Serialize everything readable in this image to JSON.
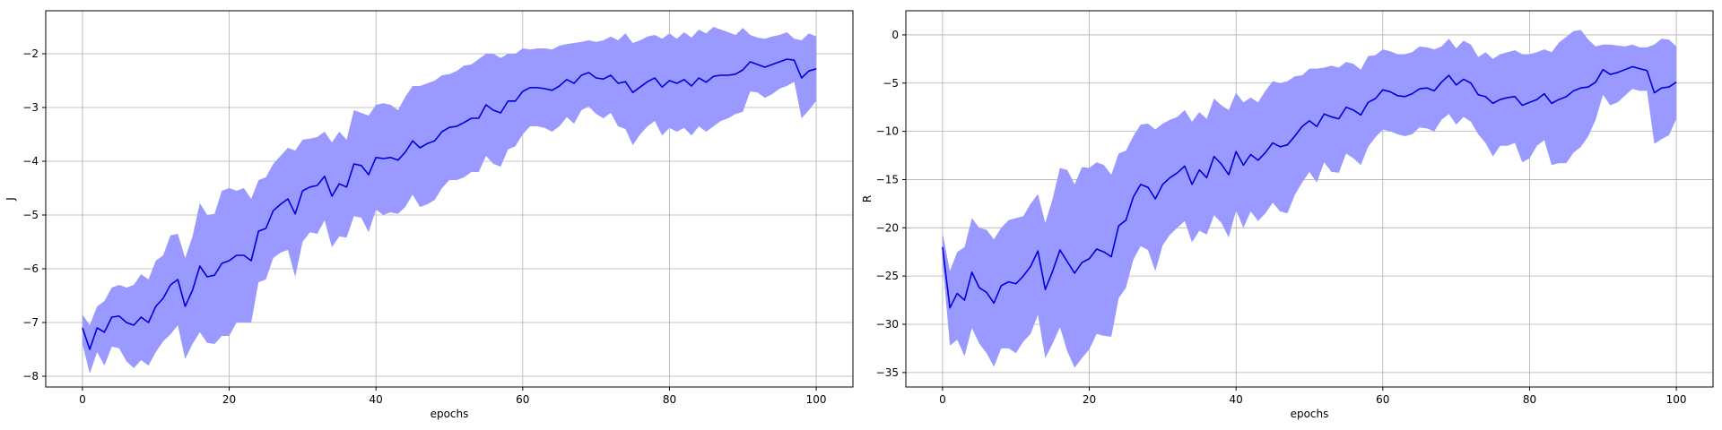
{
  "chart_data": [
    {
      "type": "line",
      "xlabel": "epochs",
      "ylabel": "J",
      "xlim": [
        -5,
        105
      ],
      "ylim": [
        -8.2,
        -1.2
      ],
      "xticks": [
        0,
        20,
        40,
        60,
        80,
        100
      ],
      "yticks": [
        -8,
        -7,
        -6,
        -5,
        -4,
        -3,
        -2
      ],
      "grid": true,
      "line_color": "#0000dd",
      "band_color": "#9999ff",
      "x": [
        0,
        1,
        2,
        3,
        4,
        5,
        6,
        7,
        8,
        9,
        10,
        11,
        12,
        13,
        14,
        15,
        16,
        17,
        18,
        19,
        20,
        21,
        22,
        23,
        24,
        25,
        26,
        27,
        28,
        29,
        30,
        31,
        32,
        33,
        34,
        35,
        36,
        37,
        38,
        39,
        40,
        41,
        42,
        43,
        44,
        45,
        46,
        47,
        48,
        49,
        50,
        51,
        52,
        53,
        54,
        55,
        56,
        57,
        58,
        59,
        60,
        61,
        62,
        63,
        64,
        65,
        66,
        67,
        68,
        69,
        70,
        71,
        72,
        73,
        74,
        75,
        76,
        77,
        78,
        79,
        80,
        81,
        82,
        83,
        84,
        85,
        86,
        87,
        88,
        89,
        90,
        91,
        92,
        93,
        94,
        95,
        96,
        97,
        98,
        99,
        100
      ],
      "series": [
        {
          "mean": [
            -7.1,
            -7.5,
            -7.1,
            -7.18,
            -6.9,
            -6.88,
            -7.0,
            -7.05,
            -6.9,
            -7.0,
            -6.7,
            -6.55,
            -6.3,
            -6.2,
            -6.7,
            -6.4,
            -5.95,
            -6.15,
            -6.12,
            -5.9,
            -5.85,
            -5.75,
            -5.75,
            -5.85,
            -5.3,
            -5.25,
            -4.92,
            -4.8,
            -4.7,
            -4.98,
            -4.55,
            -4.48,
            -4.45,
            -4.28,
            -4.65,
            -4.42,
            -4.48,
            -4.05,
            -4.08,
            -4.25,
            -3.93,
            -3.95,
            -3.93,
            -3.98,
            -3.83,
            -3.62,
            -3.75,
            -3.67,
            -3.62,
            -3.45,
            -3.37,
            -3.35,
            -3.28,
            -3.2,
            -3.2,
            -2.95,
            -3.05,
            -3.1,
            -2.88,
            -2.88,
            -2.7,
            -2.63,
            -2.63,
            -2.65,
            -2.68,
            -2.6,
            -2.48,
            -2.55,
            -2.4,
            -2.35,
            -2.45,
            -2.47,
            -2.4,
            -2.55,
            -2.52,
            -2.72,
            -2.62,
            -2.52,
            -2.45,
            -2.62,
            -2.5,
            -2.55,
            -2.48,
            -2.6,
            -2.45,
            -2.53,
            -2.42,
            -2.4,
            -2.4,
            -2.38,
            -2.3,
            -2.15,
            -2.2,
            -2.25,
            -2.2,
            -2.15,
            -2.1,
            -2.12,
            -2.45,
            -2.32,
            -2.28
          ],
          "upper": [
            -6.85,
            -7.05,
            -6.7,
            -6.6,
            -6.35,
            -6.3,
            -6.35,
            -6.3,
            -6.1,
            -6.2,
            -5.85,
            -5.75,
            -5.38,
            -5.35,
            -5.8,
            -5.4,
            -4.78,
            -5.0,
            -4.98,
            -4.55,
            -4.5,
            -4.55,
            -4.5,
            -4.7,
            -4.35,
            -4.3,
            -4.05,
            -3.9,
            -3.75,
            -3.8,
            -3.6,
            -3.58,
            -3.55,
            -3.45,
            -3.65,
            -3.45,
            -3.6,
            -3.05,
            -3.1,
            -3.15,
            -2.95,
            -2.92,
            -2.95,
            -3.05,
            -2.8,
            -2.6,
            -2.6,
            -2.55,
            -2.5,
            -2.4,
            -2.38,
            -2.32,
            -2.22,
            -2.2,
            -2.1,
            -2.0,
            -2.0,
            -2.08,
            -2.0,
            -2.0,
            -1.9,
            -1.92,
            -1.9,
            -1.9,
            -1.92,
            -1.85,
            -1.82,
            -1.8,
            -1.78,
            -1.75,
            -1.78,
            -1.75,
            -1.68,
            -1.75,
            -1.62,
            -1.8,
            -1.75,
            -1.68,
            -1.65,
            -1.72,
            -1.62,
            -1.72,
            -1.6,
            -1.7,
            -1.55,
            -1.62,
            -1.5,
            -1.55,
            -1.6,
            -1.65,
            -1.52,
            -1.65,
            -1.7,
            -1.72,
            -1.68,
            -1.65,
            -1.6,
            -1.72,
            -1.75,
            -1.62,
            -1.68
          ],
          "lower": [
            -7.4,
            -7.95,
            -7.55,
            -7.8,
            -7.45,
            -7.48,
            -7.72,
            -7.85,
            -7.7,
            -7.8,
            -7.55,
            -7.35,
            -7.22,
            -7.05,
            -7.68,
            -7.4,
            -7.18,
            -7.38,
            -7.4,
            -7.25,
            -7.25,
            -7.0,
            -7.0,
            -7.0,
            -6.25,
            -6.2,
            -5.8,
            -5.7,
            -5.65,
            -6.15,
            -5.5,
            -5.32,
            -5.35,
            -5.1,
            -5.6,
            -5.4,
            -5.42,
            -5.02,
            -5.05,
            -5.32,
            -4.9,
            -5.0,
            -4.95,
            -4.98,
            -4.85,
            -4.62,
            -4.85,
            -4.8,
            -4.72,
            -4.5,
            -4.35,
            -4.35,
            -4.3,
            -4.2,
            -4.2,
            -3.9,
            -4.05,
            -4.1,
            -3.78,
            -3.72,
            -3.5,
            -3.35,
            -3.35,
            -3.38,
            -3.45,
            -3.35,
            -3.18,
            -3.3,
            -3.05,
            -2.98,
            -3.12,
            -3.2,
            -3.1,
            -3.35,
            -3.4,
            -3.7,
            -3.5,
            -3.35,
            -3.25,
            -3.52,
            -3.38,
            -3.45,
            -3.38,
            -3.52,
            -3.35,
            -3.45,
            -3.35,
            -3.25,
            -3.2,
            -3.12,
            -3.08,
            -2.7,
            -2.72,
            -2.82,
            -2.75,
            -2.65,
            -2.6,
            -2.52,
            -3.2,
            -3.05,
            -2.88
          ]
        }
      ]
    },
    {
      "type": "line",
      "xlabel": "epochs",
      "ylabel": "R",
      "xlim": [
        -5,
        105
      ],
      "ylim": [
        -36.5,
        2.5
      ],
      "xticks": [
        0,
        20,
        40,
        60,
        80,
        100
      ],
      "yticks": [
        -35,
        -30,
        -25,
        -20,
        -15,
        -10,
        -5,
        0
      ],
      "grid": true,
      "line_color": "#0000dd",
      "band_color": "#9999ff",
      "x": [
        0,
        1,
        2,
        3,
        4,
        5,
        6,
        7,
        8,
        9,
        10,
        11,
        12,
        13,
        14,
        15,
        16,
        17,
        18,
        19,
        20,
        21,
        22,
        23,
        24,
        25,
        26,
        27,
        28,
        29,
        30,
        31,
        32,
        33,
        34,
        35,
        36,
        37,
        38,
        39,
        40,
        41,
        42,
        43,
        44,
        45,
        46,
        47,
        48,
        49,
        50,
        51,
        52,
        53,
        54,
        55,
        56,
        57,
        58,
        59,
        60,
        61,
        62,
        63,
        64,
        65,
        66,
        67,
        68,
        69,
        70,
        71,
        72,
        73,
        74,
        75,
        76,
        77,
        78,
        79,
        80,
        81,
        82,
        83,
        84,
        85,
        86,
        87,
        88,
        89,
        90,
        91,
        92,
        93,
        94,
        95,
        96,
        97,
        98,
        99,
        100
      ],
      "series": [
        {
          "mean": [
            -22.0,
            -28.3,
            -26.8,
            -27.5,
            -24.6,
            -26.2,
            -26.7,
            -27.8,
            -26.0,
            -25.6,
            -25.8,
            -25.0,
            -24.0,
            -22.4,
            -26.4,
            -24.5,
            -22.3,
            -23.5,
            -24.7,
            -23.6,
            -23.2,
            -22.2,
            -22.5,
            -23.0,
            -19.8,
            -19.2,
            -16.8,
            -15.5,
            -15.8,
            -17.0,
            -15.5,
            -14.8,
            -14.3,
            -13.6,
            -15.5,
            -14.0,
            -14.8,
            -12.6,
            -13.4,
            -14.5,
            -12.1,
            -13.5,
            -12.4,
            -13.0,
            -12.2,
            -11.2,
            -11.6,
            -11.4,
            -10.5,
            -9.5,
            -8.9,
            -9.5,
            -8.2,
            -8.5,
            -8.7,
            -7.5,
            -7.8,
            -8.3,
            -7.0,
            -6.6,
            -5.7,
            -5.9,
            -6.3,
            -6.4,
            -6.1,
            -5.6,
            -5.5,
            -5.8,
            -4.9,
            -4.2,
            -5.2,
            -4.6,
            -5.0,
            -6.2,
            -6.4,
            -7.1,
            -6.7,
            -6.5,
            -6.4,
            -7.3,
            -7.0,
            -6.7,
            -6.1,
            -7.1,
            -6.7,
            -6.4,
            -5.8,
            -5.5,
            -5.4,
            -4.9,
            -3.6,
            -4.1,
            -3.9,
            -3.6,
            -3.3,
            -3.5,
            -3.7,
            -6.0,
            -5.5,
            -5.4,
            -4.9
          ],
          "upper": [
            -20.5,
            -24.5,
            -22.5,
            -22.0,
            -19.0,
            -20.0,
            -20.2,
            -21.2,
            -20.0,
            -19.2,
            -19.0,
            -18.8,
            -17.5,
            -16.5,
            -19.5,
            -17.0,
            -13.8,
            -14.0,
            -15.5,
            -13.7,
            -13.8,
            -13.2,
            -13.5,
            -14.5,
            -12.3,
            -12.0,
            -10.5,
            -9.3,
            -9.2,
            -9.8,
            -9.2,
            -8.8,
            -8.5,
            -7.8,
            -9.0,
            -8.0,
            -8.7,
            -6.6,
            -7.3,
            -7.8,
            -6.0,
            -7.0,
            -6.5,
            -7.0,
            -5.8,
            -4.8,
            -5.0,
            -4.8,
            -4.3,
            -4.2,
            -3.5,
            -3.5,
            -3.4,
            -3.2,
            -3.4,
            -2.8,
            -3.0,
            -3.6,
            -2.2,
            -2.1,
            -1.5,
            -1.7,
            -2.0,
            -2.0,
            -1.8,
            -1.2,
            -1.3,
            -1.5,
            -1.2,
            -0.4,
            -1.4,
            -0.6,
            -1.0,
            -2.3,
            -1.8,
            -2.5,
            -2.0,
            -1.8,
            -1.6,
            -2.0,
            -2.0,
            -1.8,
            -1.5,
            -1.8,
            -0.8,
            -0.2,
            0.4,
            0.5,
            -0.5,
            -1.2,
            -1.0,
            -1.0,
            -1.1,
            -1.2,
            -1.0,
            -1.3,
            -1.3,
            -1.0,
            -0.4,
            -0.5,
            -1.2
          ],
          "lower": [
            -23.5,
            -32.2,
            -31.6,
            -33.3,
            -30.4,
            -32.0,
            -33.0,
            -34.4,
            -32.5,
            -32.5,
            -33.0,
            -31.8,
            -31.0,
            -29.0,
            -33.5,
            -32.0,
            -30.3,
            -32.8,
            -34.5,
            -33.5,
            -32.6,
            -31.0,
            -31.2,
            -31.3,
            -27.3,
            -26.2,
            -23.3,
            -21.9,
            -22.3,
            -24.5,
            -21.8,
            -20.7,
            -20.0,
            -19.3,
            -21.5,
            -20.3,
            -20.7,
            -18.7,
            -19.5,
            -21.0,
            -18.2,
            -20.0,
            -18.3,
            -19.3,
            -18.5,
            -17.4,
            -18.3,
            -18.5,
            -16.6,
            -15.3,
            -14.2,
            -15.3,
            -13.2,
            -14.2,
            -14.3,
            -12.3,
            -12.8,
            -13.5,
            -11.6,
            -10.6,
            -9.8,
            -10.0,
            -10.3,
            -10.5,
            -10.3,
            -9.6,
            -9.7,
            -10.0,
            -8.8,
            -8.2,
            -9.3,
            -8.5,
            -9.0,
            -10.3,
            -11.2,
            -12.6,
            -11.5,
            -11.5,
            -11.2,
            -13.2,
            -12.8,
            -11.5,
            -10.9,
            -13.5,
            -13.3,
            -13.3,
            -12.2,
            -11.6,
            -10.5,
            -8.8,
            -6.2,
            -7.3,
            -7.0,
            -6.3,
            -5.6,
            -5.8,
            -5.8,
            -11.3,
            -10.8,
            -10.4,
            -8.7
          ]
        }
      ]
    }
  ]
}
